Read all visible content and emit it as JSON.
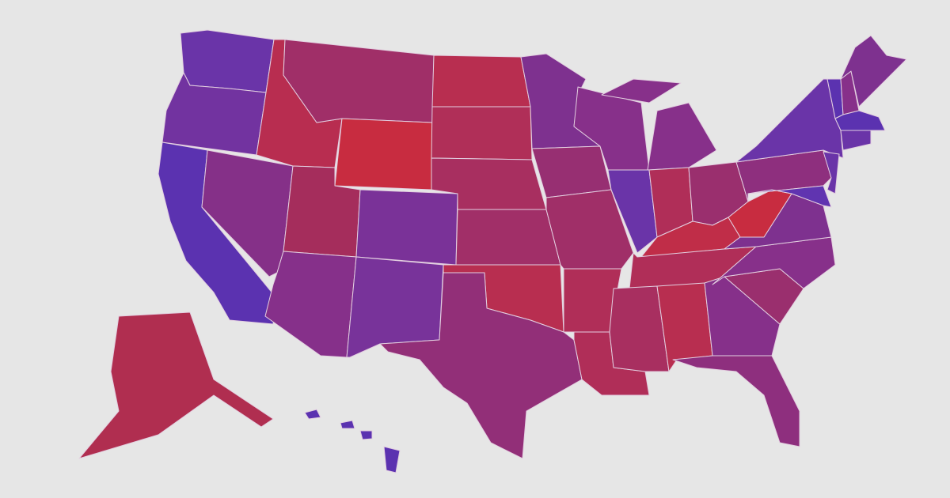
{
  "map": {
    "background": "#e6e6e6",
    "border_color": "#e3cfe0",
    "states": {
      "WA": "#6a34a8",
      "OR": "#7233a0",
      "CA": "#5b32b0",
      "NV": "#853088",
      "ID": "#b82d50",
      "MT": "#a02f68",
      "WY": "#c82c40",
      "UT": "#a52d5c",
      "AZ": "#86308a",
      "CO": "#7a3298",
      "NM": "#78339a",
      "ND": "#b82e50",
      "SD": "#b02f58",
      "NE": "#a82f60",
      "KS": "#a12f68",
      "OK": "#b82e50",
      "TX": "#922f78",
      "MN": "#7e318f",
      "IA": "#972f72",
      "MO": "#a02f68",
      "AR": "#b02e58",
      "LA": "#b02e58",
      "WI": "#87308a",
      "IL": "#6a34a8",
      "MI": "#87308a",
      "IN": "#b02e58",
      "OH": "#9a2f6e",
      "KY": "#c02d48",
      "TN": "#b02e58",
      "MS": "#a82f60",
      "AL": "#b82e50",
      "GA": "#86308a",
      "FL": "#8e2f7e",
      "SC": "#9a2f6e",
      "NC": "#87308a",
      "VA": "#7e318f",
      "WV": "#c82c40",
      "PA": "#8e2f7e",
      "NY": "#6a34a8",
      "VT": "#5b32b0",
      "NH": "#87308a",
      "ME": "#7e318f",
      "MA": "#5b32b0",
      "CT": "#6a34a8",
      "NJ": "#6a34a8",
      "MD": "#6034b0",
      "AK": "#b02e50",
      "HI": "#5b32b0"
    }
  }
}
